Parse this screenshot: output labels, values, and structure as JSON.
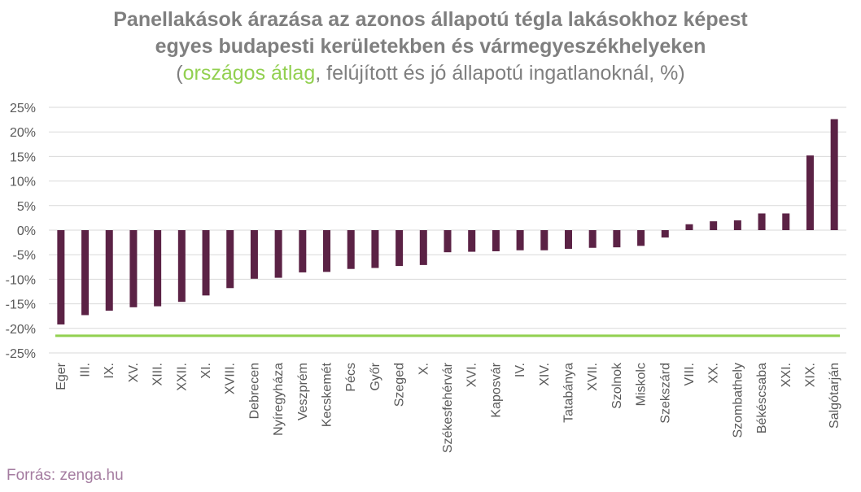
{
  "title": {
    "line1": "Panellakások árazása az azonos állapotú tégla lakásokhoz képest",
    "line2": "egyes budapesti kerületekben és vármegyeszékhelyeken",
    "sub_open": "(",
    "sub_highlight": "országos átlag",
    "sub_rest": ", felújított és jó állapotú ingatlanoknál, %)"
  },
  "source": "Forrás: zenga.hu",
  "colors": {
    "bar": "#5b2245",
    "average_line": "#92d050",
    "grid": "#d9d9d9",
    "axis_text": "#595959"
  },
  "chart_data": {
    "type": "bar",
    "title": "Panellakások árazása az azonos állapotú tégla lakásokhoz képest egyes budapesti kerületekben és vármegyeszékhelyeken",
    "subtitle": "(országos átlag, felújított és jó állapotú ingatlanoknál, %)",
    "categories": [
      "Eger",
      "III.",
      "IX.",
      "XV.",
      "XIII.",
      "XXII.",
      "XI.",
      "XVIII.",
      "Debrecen",
      "Nyíregyháza",
      "Veszprém",
      "Kecskemét",
      "Pécs",
      "Győr",
      "Szeged",
      "X.",
      "Székesfehérvár",
      "XVI.",
      "Kaposvár",
      "IV.",
      "XIV.",
      "Tatabánya",
      "XVII.",
      "Szolnok",
      "Miskolc",
      "Szekszárd",
      "VIII.",
      "XX.",
      "Szombathely",
      "Békéscsaba",
      "XXI.",
      "XIX.",
      "Salgótarján"
    ],
    "values": [
      -19.2,
      -17.3,
      -16.4,
      -15.7,
      -15.5,
      -14.6,
      -13.3,
      -11.8,
      -9.9,
      -9.7,
      -8.6,
      -8.5,
      -7.9,
      -7.7,
      -7.3,
      -7.1,
      -4.5,
      -4.4,
      -4.3,
      -4.1,
      -4.1,
      -3.8,
      -3.6,
      -3.5,
      -3.2,
      -1.5,
      1.2,
      1.8,
      2.0,
      3.4,
      3.4,
      15.2,
      22.6
    ],
    "average": -21.5,
    "average_label": "országos átlag",
    "ylim": [
      -25,
      25
    ],
    "yticks": [
      "25%",
      "20%",
      "15%",
      "10%",
      "5%",
      "0%",
      "-5%",
      "-10%",
      "-15%",
      "-20%",
      "-25%"
    ],
    "xlabel": "",
    "ylabel": "",
    "grid": true,
    "legend": "none"
  }
}
